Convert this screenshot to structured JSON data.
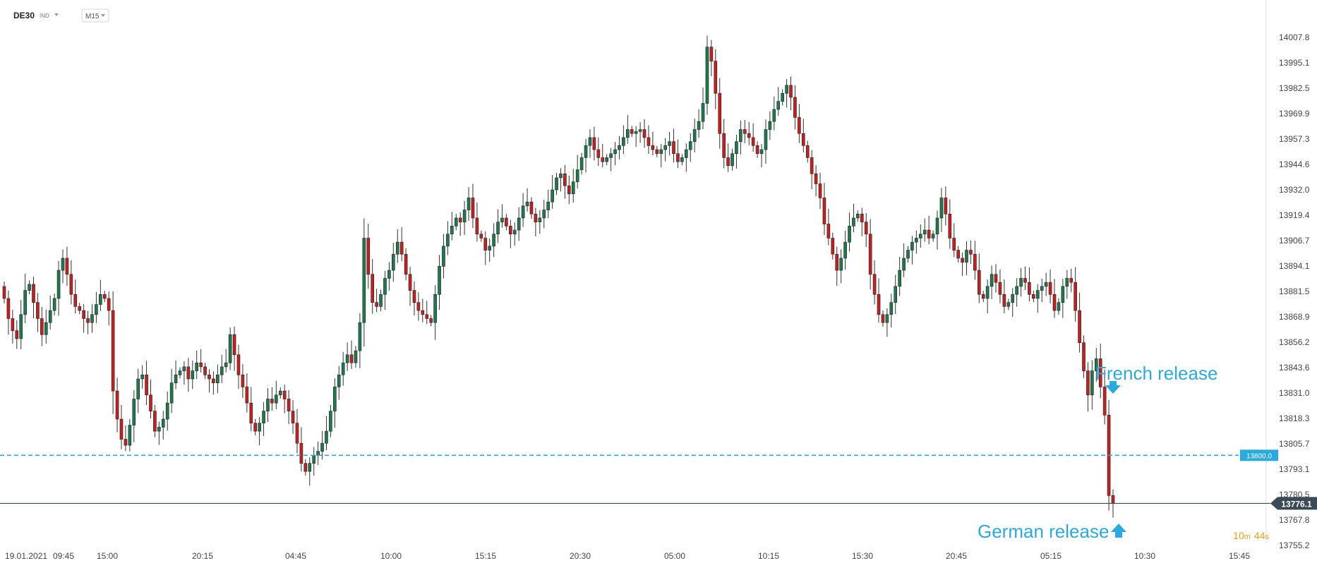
{
  "header": {
    "symbol": "DE30",
    "category": "IND",
    "timeframe": "M15"
  },
  "colors": {
    "up": "#1d7a4c",
    "down": "#c81e1e",
    "wick": "#333333",
    "accent": "#29abe2",
    "price_line": "#3a4a56",
    "countdown": "#f39c12"
  },
  "chart_data": {
    "type": "candlestick",
    "title": "",
    "xlabel": "",
    "ylabel": "",
    "ylim": [
      13754,
      14019
    ],
    "x_tick_labels": [
      "19.01.2021",
      "09:45",
      "15:00",
      "20:15",
      "04:45",
      "10:00",
      "15:15",
      "20:30",
      "05:00",
      "10:15",
      "15:30",
      "20:45",
      "05:15",
      "10:30",
      "15:45"
    ],
    "y_tick_labels": [
      "14007.8",
      "13995.1",
      "13982.5",
      "13969.9",
      "13957.3",
      "13944.6",
      "13932.0",
      "13919.4",
      "13906.7",
      "13894.1",
      "13881.5",
      "13868.9",
      "13856.2",
      "13843.6",
      "13831.0",
      "13818.3",
      "13805.7",
      "13793.1",
      "13780.5",
      "13767.8",
      "13755.2"
    ],
    "y_ticks": [
      14007.8,
      13995.1,
      13982.5,
      13969.9,
      13957.3,
      13944.6,
      13932.0,
      13919.4,
      13906.7,
      13894.1,
      13881.5,
      13868.9,
      13856.2,
      13843.6,
      13831.0,
      13818.3,
      13805.7,
      13793.1,
      13780.5,
      13767.8,
      13755.2
    ],
    "close_series": [
      13878,
      13868,
      13862,
      13858,
      13870,
      13882,
      13885,
      13876,
      13868,
      13860,
      13866,
      13872,
      13878,
      13892,
      13898,
      13890,
      13880,
      13874,
      13872,
      13868,
      13866,
      13870,
      13875,
      13880,
      13878,
      13872,
      13832,
      13818,
      13808,
      13805,
      13815,
      13828,
      13838,
      13840,
      13830,
      13822,
      13812,
      13814,
      13818,
      13826,
      13836,
      13840,
      13842,
      13844,
      13838,
      13842,
      13846,
      13844,
      13840,
      13838,
      13836,
      13840,
      13844,
      13846,
      13860,
      13850,
      13840,
      13834,
      13826,
      13816,
      13812,
      13816,
      13822,
      13828,
      13826,
      13830,
      13832,
      13828,
      13822,
      13816,
      13806,
      13796,
      13792,
      13796,
      13800,
      13802,
      13806,
      13812,
      13822,
      13834,
      13840,
      13846,
      13850,
      13846,
      13852,
      13866,
      13908,
      13890,
      13876,
      13874,
      13880,
      13888,
      13892,
      13900,
      13906,
      13900,
      13890,
      13882,
      13876,
      13872,
      13870,
      13868,
      13866,
      13880,
      13894,
      13904,
      13910,
      13914,
      13918,
      13916,
      13922,
      13928,
      13918,
      13910,
      13908,
      13902,
      13904,
      13910,
      13916,
      13918,
      13914,
      13910,
      13912,
      13918,
      13924,
      13926,
      13920,
      13916,
      13918,
      13922,
      13926,
      13932,
      13938,
      13940,
      13934,
      13930,
      13936,
      13942,
      13948,
      13954,
      13958,
      13952,
      13948,
      13946,
      13948,
      13950,
      13952,
      13954,
      13958,
      13962,
      13960,
      13961,
      13962,
      13958,
      13954,
      13952,
      13950,
      13952,
      13954,
      13956,
      13950,
      13946,
      13948,
      13952,
      13956,
      13962,
      13966,
      13975,
      14003,
      13996,
      13980,
      13960,
      13948,
      13944,
      13950,
      13956,
      13962,
      13960,
      13958,
      13954,
      13950,
      13952,
      13962,
      13966,
      13972,
      13976,
      13980,
      13984,
      13978,
      13968,
      13960,
      13954,
      13948,
      13940,
      13935,
      13928,
      13915,
      13908,
      13900,
      13892,
      13898,
      13906,
      13914,
      13918,
      13920,
      13916,
      13910,
      13890,
      13880,
      13870,
      13866,
      13870,
      13876,
      13884,
      13892,
      13898,
      13902,
      13906,
      13908,
      13910,
      13912,
      13908,
      13910,
      13918,
      13928,
      13920,
      13908,
      13902,
      13898,
      13896,
      13902,
      13900,
      13892,
      13880,
      13878,
      13884,
      13890,
      13886,
      13880,
      13874,
      13876,
      13880,
      13884,
      13888,
      13886,
      13880,
      13878,
      13882,
      13884,
      13886,
      13880,
      13872,
      13876,
      13884,
      13888,
      13886,
      13872,
      13856,
      13842,
      13830,
      13842,
      13848,
      13834,
      13820,
      13780,
      13776.1
    ],
    "horizontal_lines": [
      {
        "value": 13800.0,
        "label": "13800.0",
        "style": "dashed"
      },
      {
        "value": 13776.1,
        "label": "13776.1",
        "style": "solid"
      }
    ],
    "annotations": [
      {
        "text": "French release",
        "direction": "down"
      },
      {
        "text": "German release",
        "direction": "up"
      }
    ],
    "countdown": {
      "minutes": "10",
      "m_unit": "m",
      "seconds": "44",
      "s_unit": "s"
    },
    "grid": false,
    "legend": "none"
  }
}
